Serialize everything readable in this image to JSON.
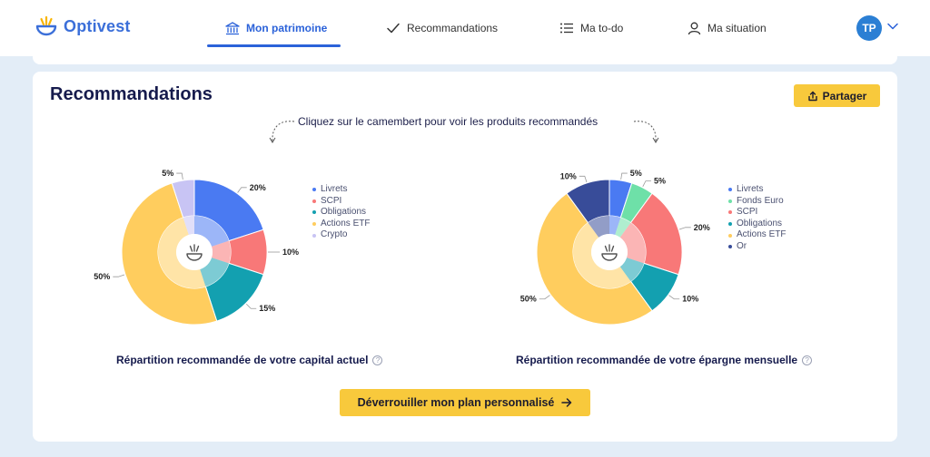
{
  "app": {
    "name": "Optivest"
  },
  "nav": {
    "items": [
      {
        "label": "Mon patrimoine",
        "icon": "bank-icon",
        "active": true
      },
      {
        "label": "Recommandations",
        "icon": "check-icon",
        "active": false
      },
      {
        "label": "Ma to-do",
        "icon": "list-icon",
        "active": false
      },
      {
        "label": "Ma situation",
        "icon": "user-icon",
        "active": false
      }
    ]
  },
  "user": {
    "initials": "TP"
  },
  "page": {
    "title": "Recommandations",
    "share_label": "Partager",
    "hint": "Cliquez sur le camembert pour voir les produits recommandés",
    "cta_label": "Déverrouiller mon plan personnalisé"
  },
  "colors": {
    "accent": "#2b62d9",
    "yellow": "#f8c93c",
    "livrets": "#4a7af2",
    "scpi": "#f87878",
    "obligations": "#13a0b0",
    "actions_etf": "#ffcd5e",
    "crypto": "#c8c4f4",
    "fonds_euro": "#6ee0a8",
    "or": "#384c99"
  },
  "chart_data": [
    {
      "type": "pie",
      "title": "Répartition recommandée de votre capital actuel",
      "categories": [
        "Livrets",
        "SCPI",
        "Obligations",
        "Actions ETF",
        "Crypto"
      ],
      "values": [
        20,
        10,
        15,
        50,
        5
      ],
      "labels": [
        "20%",
        "10%",
        "15%",
        "50%",
        "5%"
      ],
      "colors": [
        "#4a7af2",
        "#f87878",
        "#13a0b0",
        "#ffcd5e",
        "#c8c4f4"
      ],
      "legend": "right"
    },
    {
      "type": "pie",
      "title": "Répartition recommandée de votre épargne mensuelle",
      "categories": [
        "Livrets",
        "Fonds Euro",
        "SCPI",
        "Obligations",
        "Actions ETF",
        "Or"
      ],
      "values": [
        5,
        5,
        20,
        10,
        50,
        10
      ],
      "labels": [
        "5%",
        "5%",
        "20%",
        "10%",
        "50%",
        "10%"
      ],
      "colors": [
        "#4a7af2",
        "#6ee0a8",
        "#f87878",
        "#13a0b0",
        "#ffcd5e",
        "#384c99"
      ],
      "legend": "right"
    }
  ]
}
